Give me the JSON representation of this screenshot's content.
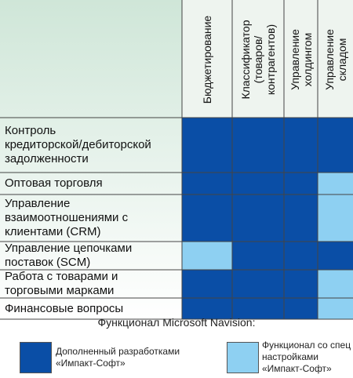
{
  "chart_data": {
    "type": "heatmap",
    "columns": [
      "Бюджетирование",
      "Классификатор\n(товаров/\nконтрагентов)",
      "Управление\nхолдингом",
      "Управление\nскладом"
    ],
    "rows": [
      "Контроль\nкредиторской/дебиторской\nзадолженности",
      "Оптовая торговля",
      "Управление\nвзаимоотношениями с\nклиентами (CRM)",
      "Управление цепочками\nпоставок (SCM)",
      "Работа с товарами и\nторговыми марками",
      "Финансовые вопросы"
    ],
    "cells": [
      [
        "dark",
        "dark",
        "dark",
        "dark"
      ],
      [
        "dark",
        "dark",
        "dark",
        "light"
      ],
      [
        "dark",
        "dark",
        "dark",
        "light"
      ],
      [
        "light",
        "dark",
        "dark",
        "dark"
      ],
      [
        "dark",
        "dark",
        "dark",
        "light"
      ],
      [
        "dark",
        "dark",
        "dark",
        "light"
      ]
    ],
    "legend_title": "Функционал Microsoft Navision:",
    "legend": [
      {
        "key": "dark",
        "label": "Дополненный разработками\n«Импакт-Софт»",
        "color": "#0a4ea6"
      },
      {
        "key": "light",
        "label": "Функционал со спец\nнастройками\n«Импакт-Софт»",
        "color": "#8ed0f2"
      }
    ],
    "colors": {
      "header_bg": "#eef4ef",
      "label_bg_top": "#cfe6d8",
      "label_bg_bottom": "#ffffff",
      "grid": "#444444"
    }
  }
}
